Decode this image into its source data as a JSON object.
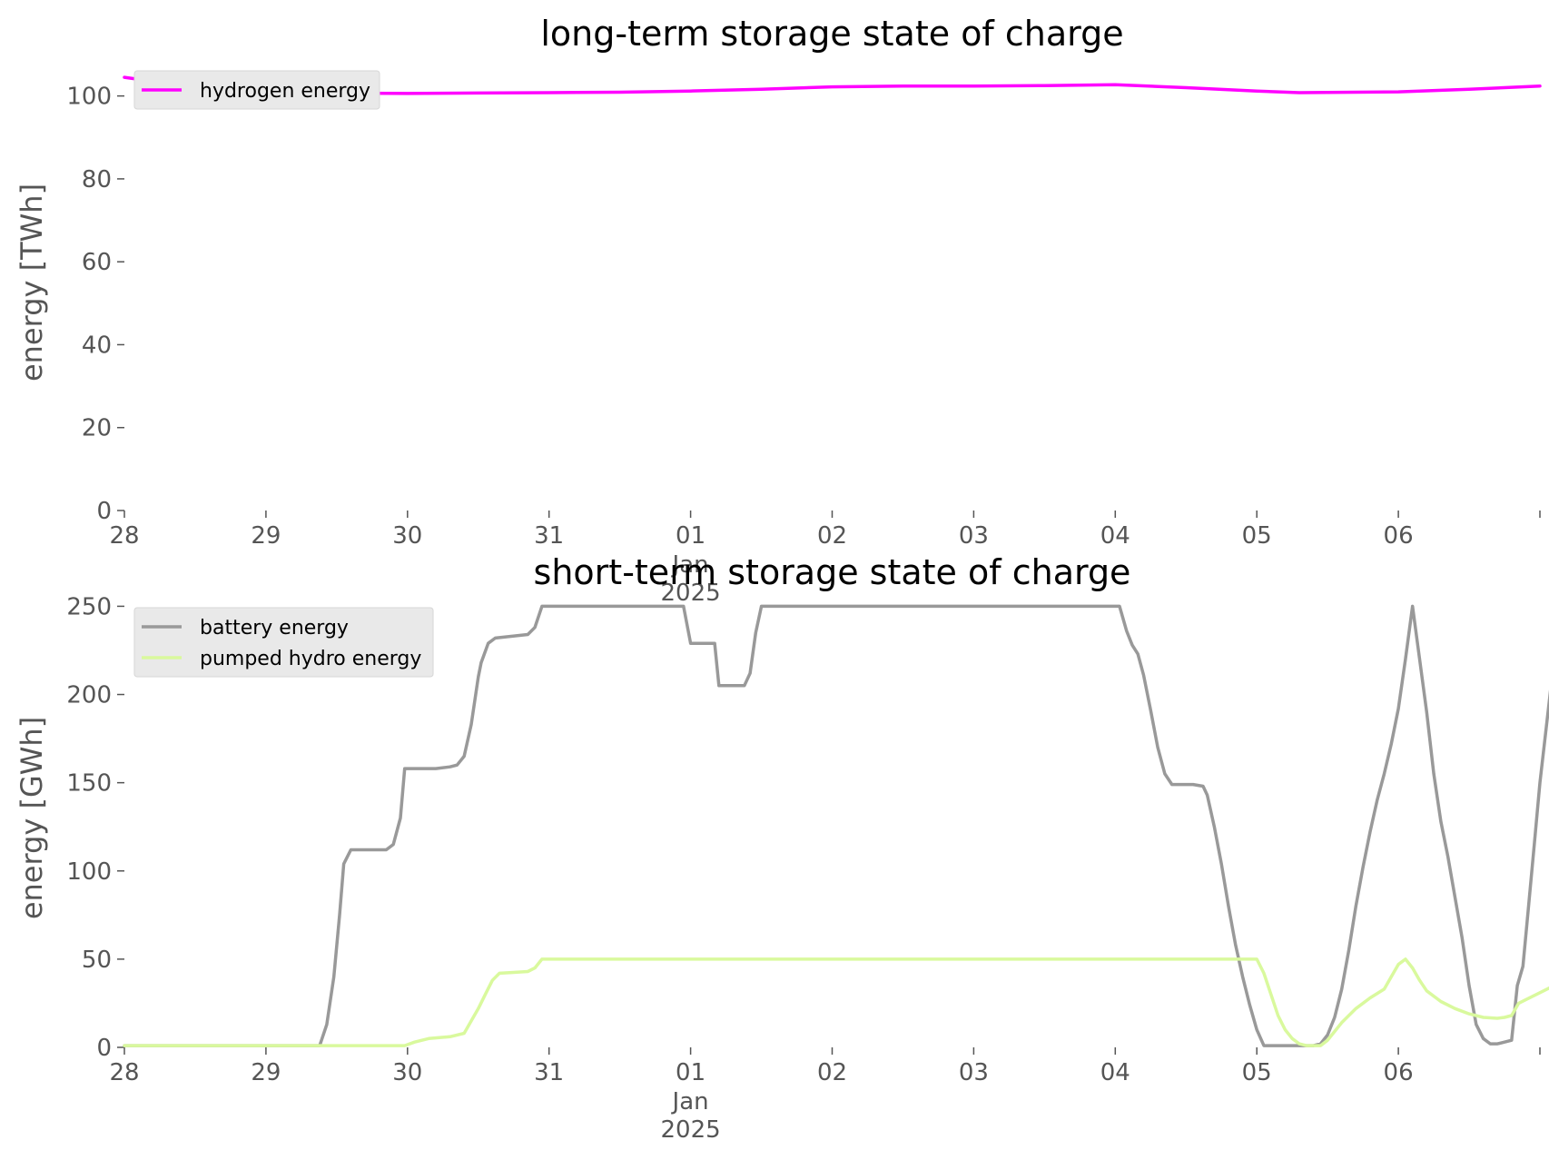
{
  "chart_data": [
    {
      "type": "line",
      "title": "long-term storage state of charge",
      "ylabel": "energy [TWh]",
      "ylim": [
        0,
        110
      ],
      "yticks": [
        0,
        20,
        40,
        60,
        80,
        100
      ],
      "xticks": [
        {
          "day": 0,
          "label": "28"
        },
        {
          "day": 1,
          "label": "29"
        },
        {
          "day": 2,
          "label": "30"
        },
        {
          "day": 3,
          "label": "31"
        },
        {
          "day": 4,
          "label": "01"
        },
        {
          "day": 5,
          "label": "02"
        },
        {
          "day": 6,
          "label": "03"
        },
        {
          "day": 7,
          "label": "04"
        },
        {
          "day": 8,
          "label": "05"
        },
        {
          "day": 9,
          "label": "06"
        },
        {
          "day": 10,
          "label": ""
        }
      ],
      "x_sublabel": {
        "day": 4,
        "month": "Jan",
        "year": "2025"
      },
      "xlim": [
        0,
        10
      ],
      "grid": false,
      "legend": "top-left",
      "series": [
        {
          "name": "hydrogen energy",
          "color": "#ff00ff",
          "points": [
            [
              0,
              104.5
            ],
            [
              0.25,
              103.3
            ],
            [
              0.5,
              102.0
            ],
            [
              0.75,
              101.3
            ],
            [
              1.0,
              100.9
            ],
            [
              1.5,
              100.7
            ],
            [
              2.0,
              100.6
            ],
            [
              2.5,
              100.7
            ],
            [
              3.0,
              100.8
            ],
            [
              3.5,
              100.9
            ],
            [
              4.0,
              101.2
            ],
            [
              4.5,
              101.6
            ],
            [
              5.0,
              102.2
            ],
            [
              5.5,
              102.4
            ],
            [
              6.0,
              102.4
            ],
            [
              6.5,
              102.5
            ],
            [
              7.0,
              102.7
            ],
            [
              7.5,
              102.0
            ],
            [
              8.0,
              101.2
            ],
            [
              8.3,
              100.8
            ],
            [
              8.7,
              100.9
            ],
            [
              9.0,
              101.0
            ],
            [
              9.5,
              101.6
            ],
            [
              10.0,
              102.4
            ]
          ]
        }
      ]
    },
    {
      "type": "line",
      "title": "short-term storage state of charge",
      "ylabel": "energy [GWh]",
      "ylim": [
        0,
        260
      ],
      "yticks": [
        0,
        50,
        100,
        150,
        200,
        250
      ],
      "xticks": [
        {
          "day": 0,
          "label": "28"
        },
        {
          "day": 1,
          "label": "29"
        },
        {
          "day": 2,
          "label": "30"
        },
        {
          "day": 3,
          "label": "31"
        },
        {
          "day": 4,
          "label": "01"
        },
        {
          "day": 5,
          "label": "02"
        },
        {
          "day": 6,
          "label": "03"
        },
        {
          "day": 7,
          "label": "04"
        },
        {
          "day": 8,
          "label": "05"
        },
        {
          "day": 9,
          "label": "06"
        },
        {
          "day": 10,
          "label": ""
        }
      ],
      "x_sublabel": {
        "day": 4,
        "month": "Jan",
        "year": "2025"
      },
      "xlim": [
        0,
        10
      ],
      "grid": false,
      "legend": "top-left",
      "series": [
        {
          "name": "battery energy",
          "color": "#999999",
          "points": [
            [
              0,
              1
            ],
            [
              1.38,
              1
            ],
            [
              1.43,
              13
            ],
            [
              1.48,
              40
            ],
            [
              1.52,
              75
            ],
            [
              1.55,
              104
            ],
            [
              1.6,
              112
            ],
            [
              1.85,
              112
            ],
            [
              1.9,
              115
            ],
            [
              1.95,
              130
            ],
            [
              1.98,
              158
            ],
            [
              2.2,
              158
            ],
            [
              2.3,
              159
            ],
            [
              2.35,
              160
            ],
            [
              2.4,
              165
            ],
            [
              2.45,
              183
            ],
            [
              2.5,
              210
            ],
            [
              2.52,
              218
            ],
            [
              2.57,
              229
            ],
            [
              2.62,
              232
            ],
            [
              2.85,
              234
            ],
            [
              2.9,
              238
            ],
            [
              2.95,
              250
            ],
            [
              3.95,
              250
            ],
            [
              4.0,
              229
            ],
            [
              4.17,
              229
            ],
            [
              4.2,
              205
            ],
            [
              4.38,
              205
            ],
            [
              4.42,
              212
            ],
            [
              4.46,
              235
            ],
            [
              4.5,
              250
            ],
            [
              7.03,
              250
            ],
            [
              7.08,
              236
            ],
            [
              7.12,
              228
            ],
            [
              7.16,
              223
            ],
            [
              7.2,
              211
            ],
            [
              7.25,
              191
            ],
            [
              7.3,
              170
            ],
            [
              7.35,
              155
            ],
            [
              7.4,
              149
            ],
            [
              7.55,
              149
            ],
            [
              7.62,
              148
            ],
            [
              7.65,
              143
            ],
            [
              7.7,
              125
            ],
            [
              7.75,
              104
            ],
            [
              7.8,
              80
            ],
            [
              7.85,
              58
            ],
            [
              7.9,
              40
            ],
            [
              7.95,
              24
            ],
            [
              8.0,
              10
            ],
            [
              8.05,
              1
            ],
            [
              8.3,
              1
            ],
            [
              8.4,
              1
            ],
            [
              8.45,
              2
            ],
            [
              8.5,
              7
            ],
            [
              8.55,
              17
            ],
            [
              8.6,
              33
            ],
            [
              8.65,
              55
            ],
            [
              8.7,
              80
            ],
            [
              8.75,
              102
            ],
            [
              8.8,
              122
            ],
            [
              8.85,
              140
            ],
            [
              8.9,
              155
            ],
            [
              8.95,
              172
            ],
            [
              9.0,
              192
            ],
            [
              9.05,
              220
            ],
            [
              9.1,
              250
            ],
            [
              9.15,
              220
            ],
            [
              9.2,
              190
            ],
            [
              9.25,
              155
            ],
            [
              9.3,
              128
            ],
            [
              9.35,
              108
            ],
            [
              9.4,
              85
            ],
            [
              9.45,
              62
            ],
            [
              9.5,
              35
            ],
            [
              9.55,
              13
            ],
            [
              9.6,
              5
            ],
            [
              9.65,
              2
            ],
            [
              9.7,
              2
            ],
            [
              9.75,
              3
            ],
            [
              9.8,
              4
            ],
            [
              9.84,
              35
            ],
            [
              9.88,
              46
            ],
            [
              9.92,
              80
            ],
            [
              9.96,
              115
            ],
            [
              10.0,
              150
            ],
            [
              10.05,
              185
            ],
            [
              10.1,
              220
            ],
            [
              10.15,
              235
            ],
            [
              10.2,
              250
            ]
          ]
        },
        {
          "name": "pumped hydro energy",
          "color": "#d9f99d",
          "points": [
            [
              0,
              1
            ],
            [
              1.98,
              1
            ],
            [
              2.05,
              3
            ],
            [
              2.15,
              5
            ],
            [
              2.3,
              6
            ],
            [
              2.4,
              8
            ],
            [
              2.45,
              15
            ],
            [
              2.5,
              22
            ],
            [
              2.55,
              30
            ],
            [
              2.6,
              38
            ],
            [
              2.65,
              42
            ],
            [
              2.75,
              42.5
            ],
            [
              2.85,
              43
            ],
            [
              2.9,
              45
            ],
            [
              2.95,
              50
            ],
            [
              7.8,
              50
            ],
            [
              8.0,
              50
            ],
            [
              8.05,
              42
            ],
            [
              8.1,
              30
            ],
            [
              8.15,
              18
            ],
            [
              8.2,
              10
            ],
            [
              8.25,
              5
            ],
            [
              8.3,
              2
            ],
            [
              8.35,
              1
            ],
            [
              8.45,
              1
            ],
            [
              8.5,
              4
            ],
            [
              8.55,
              9
            ],
            [
              8.6,
              14
            ],
            [
              8.7,
              22
            ],
            [
              8.8,
              28
            ],
            [
              8.9,
              33
            ],
            [
              8.95,
              40
            ],
            [
              9.0,
              47
            ],
            [
              9.05,
              50
            ],
            [
              9.1,
              45
            ],
            [
              9.15,
              38
            ],
            [
              9.2,
              32
            ],
            [
              9.3,
              26
            ],
            [
              9.4,
              22
            ],
            [
              9.5,
              19
            ],
            [
              9.6,
              17
            ],
            [
              9.7,
              16.5
            ],
            [
              9.75,
              17
            ],
            [
              9.8,
              18
            ],
            [
              9.85,
              25
            ],
            [
              9.9,
              27
            ],
            [
              10.0,
              31
            ],
            [
              10.1,
              35
            ],
            [
              10.15,
              39
            ],
            [
              10.2,
              43
            ],
            [
              10.25,
              50
            ]
          ]
        }
      ]
    }
  ]
}
